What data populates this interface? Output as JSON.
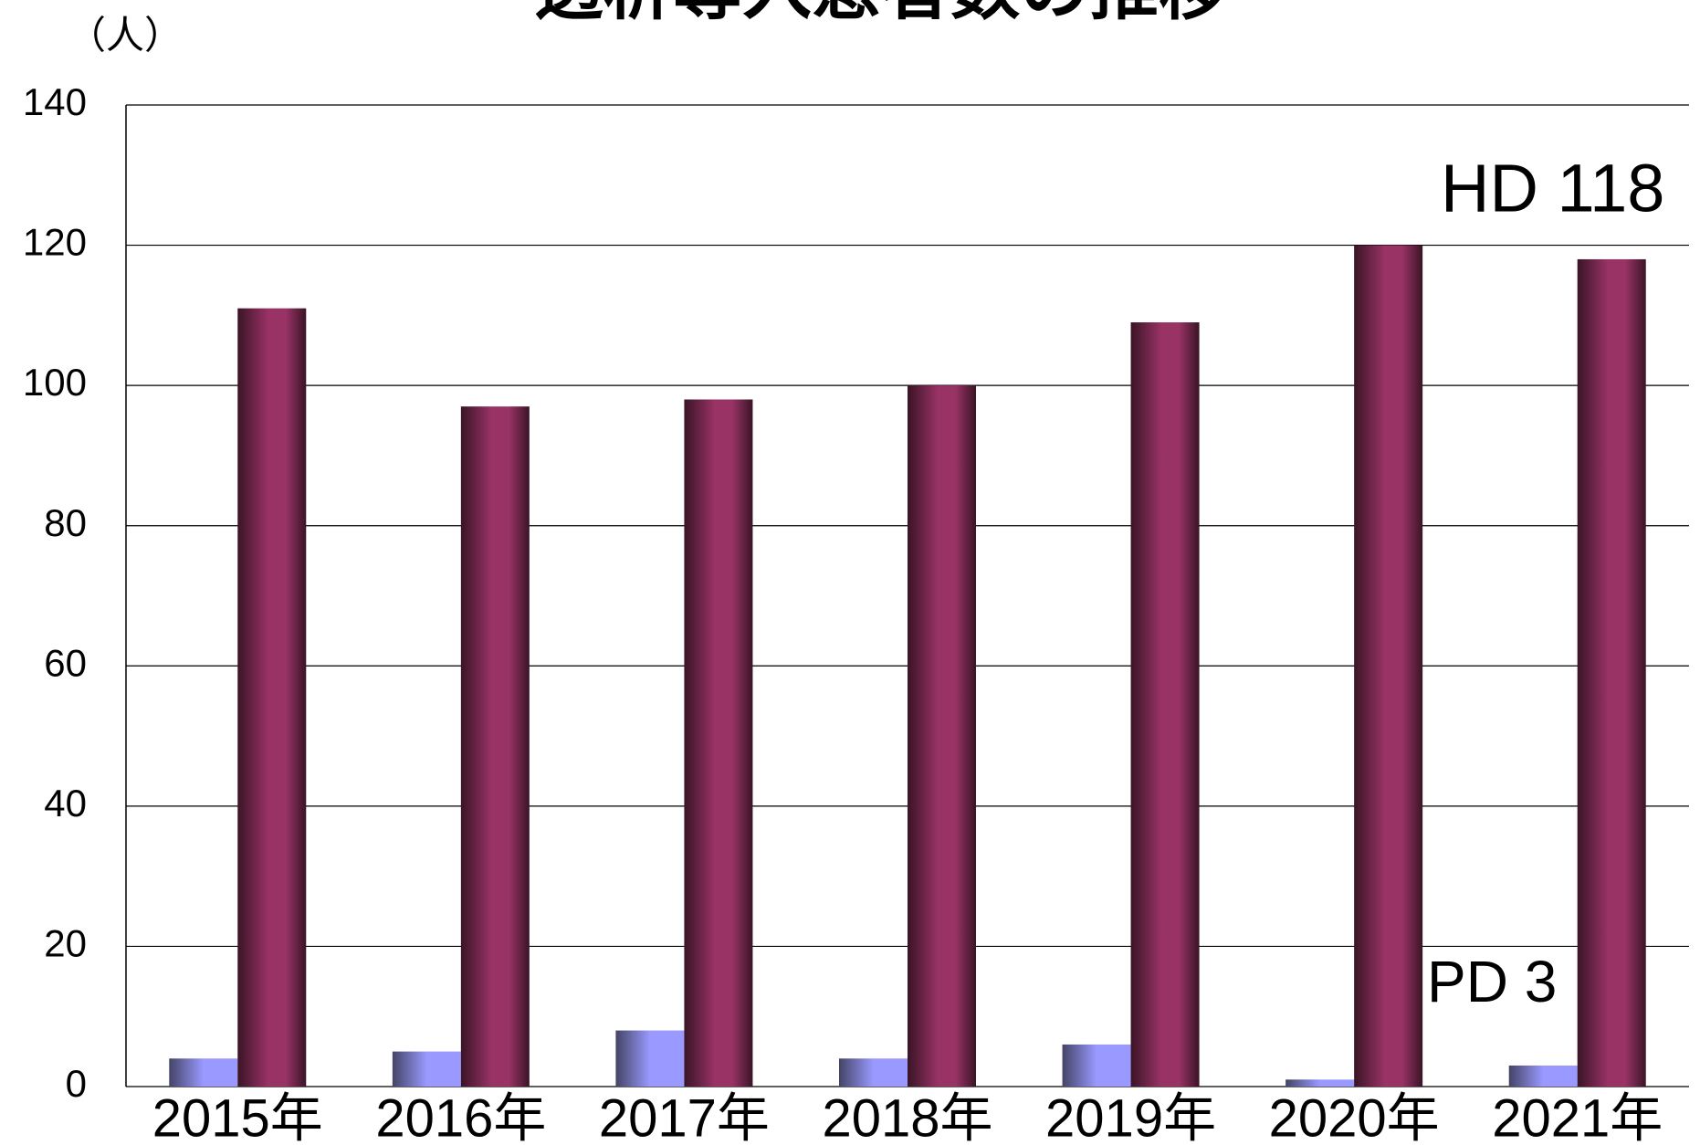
{
  "chart_data": {
    "type": "bar",
    "title": "透析導入患者数の推移",
    "y_label": "（人）",
    "categories": [
      "2015年",
      "2016年",
      "2017年",
      "2018年",
      "2019年",
      "2020年",
      "2021年"
    ],
    "series": [
      {
        "color": "#9999ff",
        "values": [
          4,
          5,
          8,
          4,
          6,
          1,
          3
        ]
      },
      {
        "color": "#993366",
        "values": [
          111,
          97,
          98,
          100,
          109,
          120,
          118
        ]
      }
    ],
    "annotations": [
      "HD 118",
      "PD 3"
    ],
    "ylim": [
      0,
      140
    ],
    "yticks": [
      0,
      20,
      40,
      60,
      80,
      100,
      120,
      140
    ],
    "grid": true
  }
}
